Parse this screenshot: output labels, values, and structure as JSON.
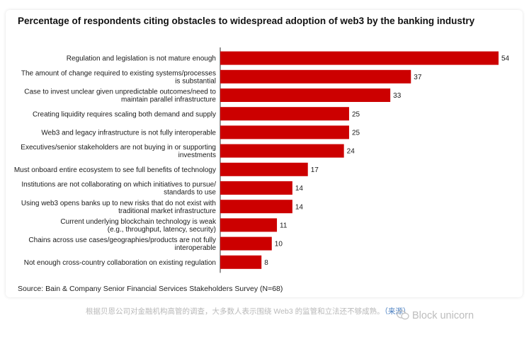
{
  "chart_data": {
    "type": "bar",
    "orientation": "horizontal",
    "title": "Percentage of respondents citing obstacles to widespread adoption of web3 by the banking industry",
    "categories": [
      [
        "Regulation and legislation is not mature enough"
      ],
      [
        "The amount of change required to existing systems/processes",
        "is substantial"
      ],
      [
        "Case to invest unclear given unpredictable outcomes/need to",
        "maintain parallel infrastructure"
      ],
      [
        "Creating liquidity requires scaling both demand and supply"
      ],
      [
        "Web3 and legacy infrastructure is not fully interoperable"
      ],
      [
        "Executives/senior stakeholders are not buying in or supporting",
        "investments"
      ],
      [
        "Must onboard entire ecosystem to see full benefits of technology"
      ],
      [
        "Institutions are not collaborating on which initiatives to pursue/",
        "standards to use"
      ],
      [
        "Using web3 opens banks up to new risks that do not exist with",
        "traditional market infrastructure"
      ],
      [
        "Current underlying blockchain technology is weak",
        "(e.g., throughput, latency, security)"
      ],
      [
        "Chains across use cases/geographies/products are not fully",
        "interoperable"
      ],
      [
        "Not enough cross-country collaboration on existing regulation"
      ]
    ],
    "values": [
      54,
      37,
      33,
      25,
      25,
      24,
      17,
      14,
      14,
      11,
      10,
      8
    ],
    "xlim": [
      0,
      54
    ],
    "grid": false,
    "bar_color": "#cc0000",
    "source": "Source: Bain & Company Senior Financial Services Stakeholders Survey (N=68)"
  },
  "caption": {
    "text": "根据贝恩公司对金融机构高管的调查，大多数人表示围绕 Web3 的监管和立法还不够成熟。",
    "link": "（来源）"
  },
  "watermark": {
    "text": "Block unicorn",
    "icon": "wechat-icon"
  }
}
